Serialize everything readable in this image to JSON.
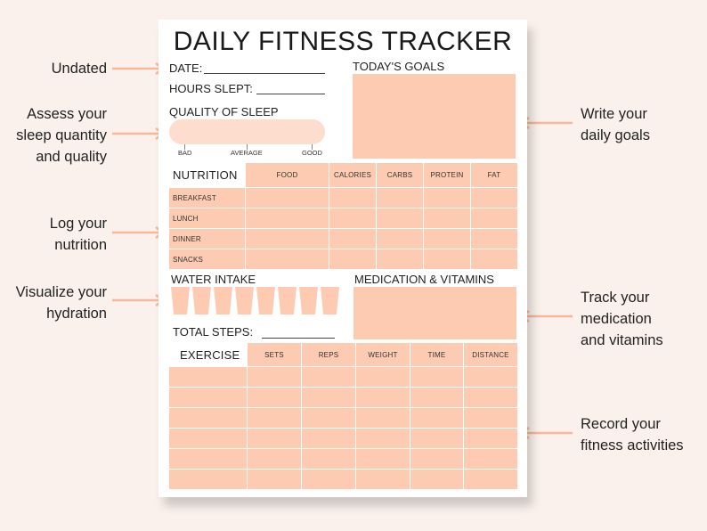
{
  "callouts": {
    "left": [
      {
        "lines": [
          "Undated"
        ]
      },
      {
        "lines": [
          "Assess your",
          "sleep quantity",
          "and quality"
        ]
      },
      {
        "lines": [
          "Log your",
          "nutrition"
        ]
      },
      {
        "lines": [
          "Visualize your",
          "hydration"
        ]
      }
    ],
    "right": [
      {
        "lines": [
          "Write your",
          "daily goals"
        ]
      },
      {
        "lines": [
          "Track your",
          "medication",
          "and vitamins"
        ]
      },
      {
        "lines": [
          "Record your",
          "fitness activities"
        ]
      }
    ]
  },
  "sheet": {
    "title": "DAILY FITNESS TRACKER",
    "date_label": "DATE:",
    "hours_slept_label": "HOURS SLEPT:",
    "quality_of_sleep_label": "QUALITY OF SLEEP",
    "sleep_scale": [
      "BAD",
      "AVERAGE",
      "GOOD"
    ],
    "todays_goals_label": "TODAY'S GOALS",
    "nutrition": {
      "label": "NUTRITION",
      "columns": [
        "FOOD",
        "CALORIES",
        "CARBS",
        "PROTEIN",
        "FAT"
      ],
      "rows": [
        "BREAKFAST",
        "LUNCH",
        "DINNER",
        "SNACKS"
      ]
    },
    "water_intake_label": "WATER INTAKE",
    "water_cups": 8,
    "medication_label": "MEDICATION & VITAMINS",
    "total_steps_label": "TOTAL STEPS:",
    "exercise": {
      "label": "EXERCISE",
      "columns": [
        "SETS",
        "REPS",
        "WEIGHT",
        "TIME",
        "DISTANCE"
      ],
      "row_count": 6
    }
  },
  "colors": {
    "background": "#fbf1ec",
    "peach": "#fdcbb2",
    "light_peach": "#fdddcd",
    "arrow": "#f6b89b"
  }
}
